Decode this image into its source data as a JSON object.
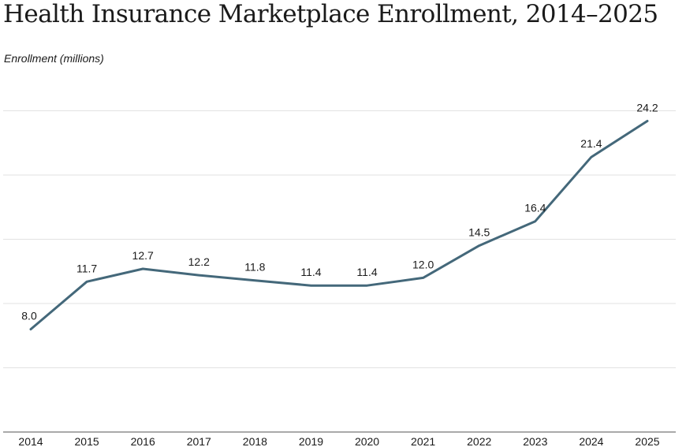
{
  "chart_data": {
    "type": "line",
    "title": "Health Insurance Marketplace Enrollment, 2014–2025",
    "ylabel": "Enrollment (millions)",
    "xlabel": "",
    "categories": [
      "2014",
      "2015",
      "2016",
      "2017",
      "2018",
      "2019",
      "2020",
      "2021",
      "2022",
      "2023",
      "2024",
      "2025"
    ],
    "values": [
      8.0,
      11.7,
      12.7,
      12.2,
      11.8,
      11.4,
      11.4,
      12.0,
      14.5,
      16.4,
      21.4,
      24.2
    ],
    "value_labels": [
      "8.0",
      "11.7",
      "12.7",
      "12.2",
      "11.8",
      "11.4",
      "11.4",
      "12.0",
      "14.5",
      "16.4",
      "21.4",
      "24.2"
    ],
    "ylim": [
      0,
      25
    ],
    "y_gridlines": [
      5,
      10,
      15,
      20,
      25
    ],
    "grid": true,
    "line_color": "#44687a"
  }
}
